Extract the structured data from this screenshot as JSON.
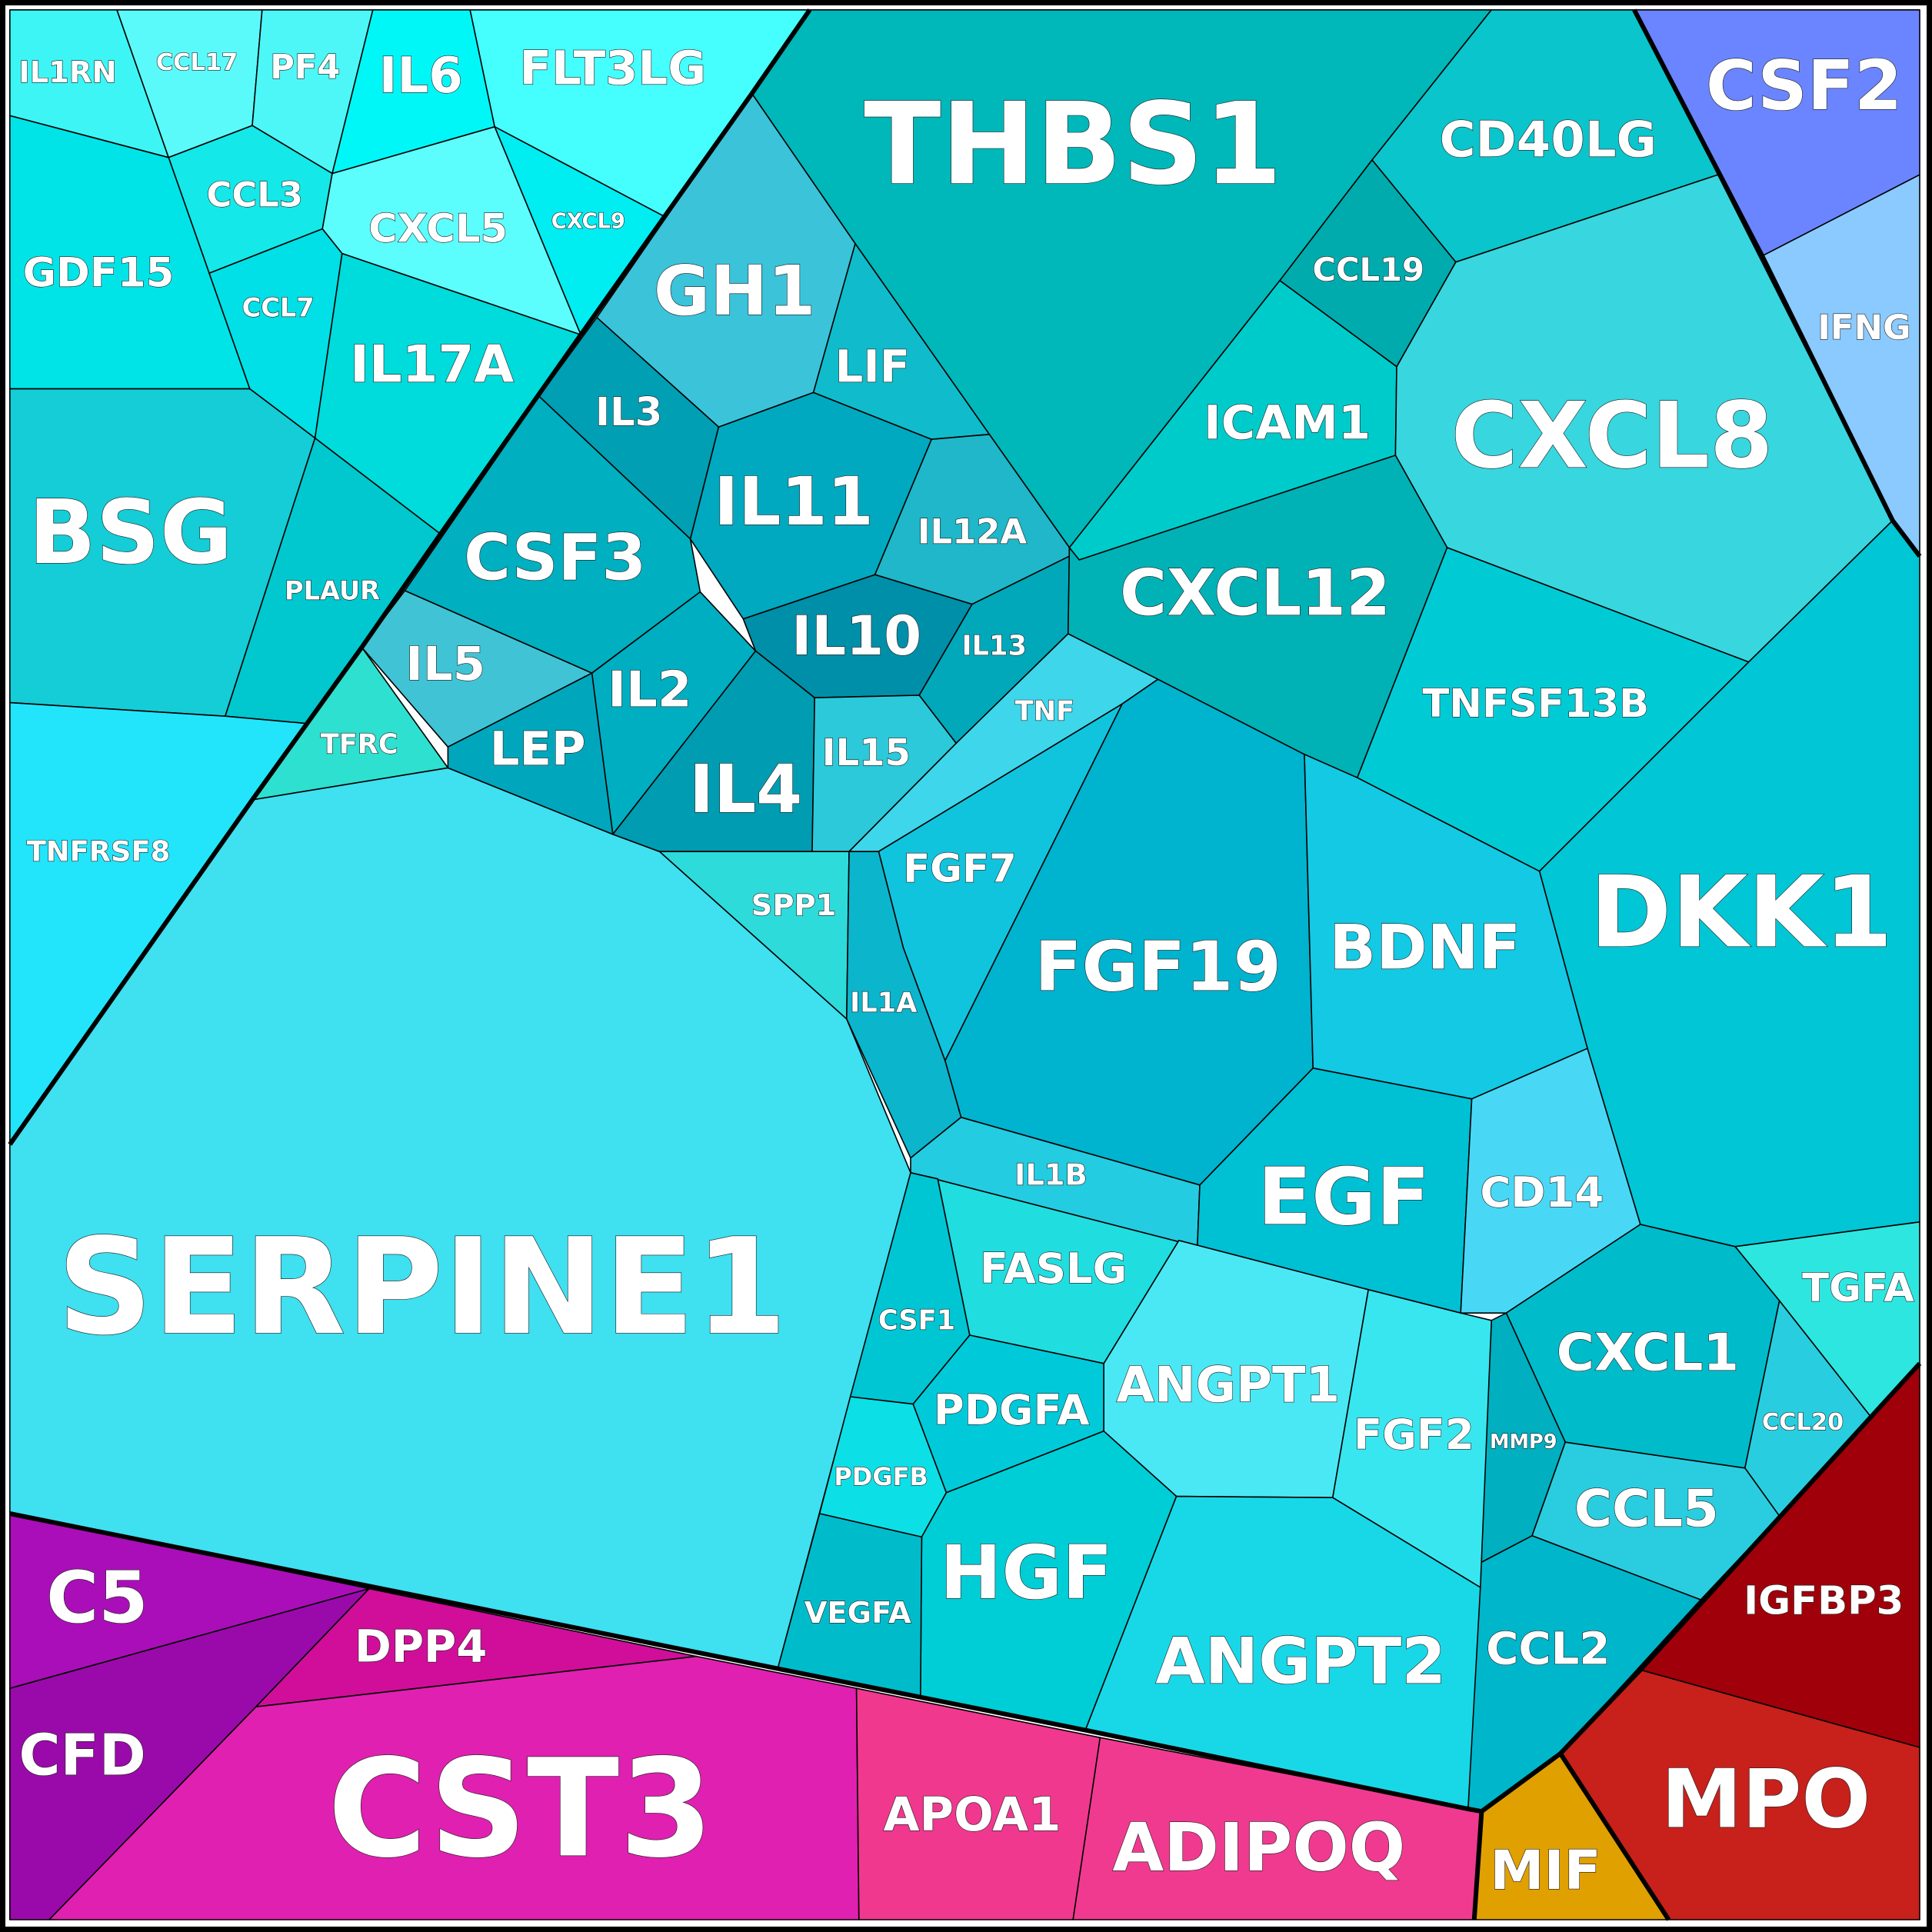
{
  "chart_data": {
    "type": "voronoi-treemap",
    "title": "",
    "groups": [
      {
        "name": "cyan",
        "color": "#00CED1"
      },
      {
        "name": "blue",
        "color": "#6A85FF"
      },
      {
        "name": "magenta",
        "color": "#E020B0"
      },
      {
        "name": "red",
        "color": "#C0201A"
      },
      {
        "name": "gold",
        "color": "#E0A000"
      }
    ],
    "cells": [
      {
        "label": "IL1RN",
        "color": "#3EF5F5"
      },
      {
        "label": "CCL17",
        "color": "#5BFAFA"
      },
      {
        "label": "PF4",
        "color": "#4DF7F7"
      },
      {
        "label": "IL6",
        "color": "#00F7F7"
      },
      {
        "label": "FLT3LG",
        "color": "#45FFFF"
      },
      {
        "label": "CCL3",
        "color": "#14E8E8"
      },
      {
        "label": "CXCL5",
        "color": "#5CFDFD"
      },
      {
        "label": "CXCL9",
        "color": "#00EDF2"
      },
      {
        "label": "GDF15",
        "color": "#00E4E8"
      },
      {
        "label": "CCL7",
        "color": "#00E0E6"
      },
      {
        "label": "IL17A",
        "color": "#00DBDB"
      },
      {
        "label": "BSG",
        "color": "#14CDD6"
      },
      {
        "label": "PLAUR",
        "color": "#00C8CE"
      },
      {
        "label": "TNFRSF8",
        "color": "#22E5FB"
      },
      {
        "label": "TFRC",
        "color": "#2EE0D0"
      },
      {
        "label": "SERPINE1",
        "color": "#3FE0F0"
      },
      {
        "label": "THBS1",
        "color": "#00B7B9"
      },
      {
        "label": "GH1",
        "color": "#3BC3DA"
      },
      {
        "label": "LIF",
        "color": "#10BCCB"
      },
      {
        "label": "IL3",
        "color": "#009FB3"
      },
      {
        "label": "IL11",
        "color": "#00A9BF"
      },
      {
        "label": "IL12A",
        "color": "#1FB7C9"
      },
      {
        "label": "CSF3",
        "color": "#00AFC0"
      },
      {
        "label": "IL10",
        "color": "#008FA8"
      },
      {
        "label": "IL13",
        "color": "#00A8BA"
      },
      {
        "label": "IL5",
        "color": "#40C4D5"
      },
      {
        "label": "IL2",
        "color": "#00AEC2"
      },
      {
        "label": "LEP",
        "color": "#00A7BC"
      },
      {
        "label": "IL4",
        "color": "#009CB1"
      },
      {
        "label": "IL15",
        "color": "#2BC9D9"
      },
      {
        "label": "TNF",
        "color": "#3DD6EB"
      },
      {
        "label": "SPP1",
        "color": "#2EDBDB"
      },
      {
        "label": "FGF7",
        "color": "#11C4DE"
      },
      {
        "label": "FGF19",
        "color": "#00B3CE"
      },
      {
        "label": "IL1A",
        "color": "#0BB5CC"
      },
      {
        "label": "IL1B",
        "color": "#23CCE0"
      },
      {
        "label": "CD40LG",
        "color": "#0AC5CB"
      },
      {
        "label": "CCL19",
        "color": "#00ABAE"
      },
      {
        "label": "ICAM1",
        "color": "#00CBCB"
      },
      {
        "label": "CXCL8",
        "color": "#38D6DF"
      },
      {
        "label": "CXCL12",
        "color": "#00B2B6"
      },
      {
        "label": "TNFSF13B",
        "color": "#00CBD5"
      },
      {
        "label": "DKK1",
        "color": "#00C6D6"
      },
      {
        "label": "BDNF",
        "color": "#13C9E4"
      },
      {
        "label": "EGF",
        "color": "#00C0D4"
      },
      {
        "label": "CD14",
        "color": "#48D8F6"
      },
      {
        "label": "TGFA",
        "color": "#2EE6E0"
      },
      {
        "label": "CXCL1",
        "color": "#00BCCB"
      },
      {
        "label": "CCL20",
        "color": "#28CEE0"
      },
      {
        "label": "MMP9",
        "color": "#00AFC0"
      },
      {
        "label": "CCL5",
        "color": "#2ACDDF"
      },
      {
        "label": "CCL2",
        "color": "#00B6CB"
      },
      {
        "label": "FASLG",
        "color": "#20DDE0"
      },
      {
        "label": "CSF1",
        "color": "#00C6D3"
      },
      {
        "label": "PDGFA",
        "color": "#00CAD9"
      },
      {
        "label": "ANGPT1",
        "color": "#4AE8F4"
      },
      {
        "label": "FGF2",
        "color": "#38E6F0"
      },
      {
        "label": "PDGFB",
        "color": "#0DDFE6"
      },
      {
        "label": "HGF",
        "color": "#00CED6"
      },
      {
        "label": "VEGFA",
        "color": "#00BCCB"
      },
      {
        "label": "ANGPT2",
        "color": "#18D8E8"
      },
      {
        "label": "CSF2",
        "color": "#6A85FF"
      },
      {
        "label": "IFNG",
        "color": "#8ACAFF"
      },
      {
        "label": "C5",
        "color": "#AA0EB8"
      },
      {
        "label": "CFD",
        "color": "#9A0AAA"
      },
      {
        "label": "DPP4",
        "color": "#D00E9A"
      },
      {
        "label": "CST3",
        "color": "#E020B0"
      },
      {
        "label": "APOA1",
        "color": "#F0388E"
      },
      {
        "label": "ADIPOQ",
        "color": "#F03A90"
      },
      {
        "label": "IGFBP3",
        "color": "#A0000A"
      },
      {
        "label": "MPO",
        "color": "#C8201A"
      },
      {
        "label": "MIF",
        "color": "#E0A000"
      }
    ]
  }
}
